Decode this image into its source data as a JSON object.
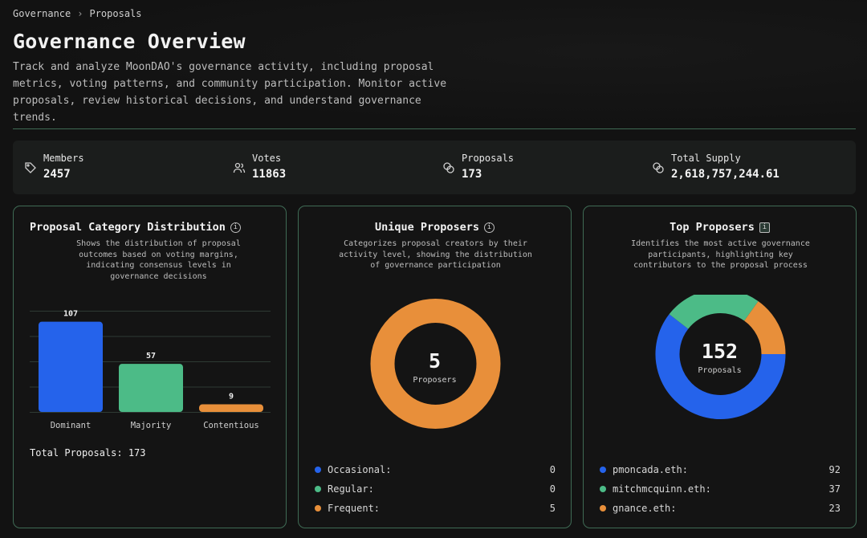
{
  "breadcrumb": {
    "root": "Governance",
    "current": "Proposals"
  },
  "header": {
    "title": "Governance Overview",
    "description": "Track and analyze MoonDAO's governance activity, including proposal metrics, voting patterns, and community participation. Monitor active proposals, review historical decisions, and understand governance trends."
  },
  "stats": [
    {
      "label": "Members",
      "value": "2457",
      "icon": "tag-icon"
    },
    {
      "label": "Votes",
      "value": "11863",
      "icon": "users-icon"
    },
    {
      "label": "Proposals",
      "value": "173",
      "icon": "coins-icon"
    },
    {
      "label": "Total Supply",
      "value": "2,618,757,244.61",
      "icon": "coins-icon"
    }
  ],
  "colors": {
    "blue": "#2563eb",
    "green": "#4cbb87",
    "orange": "#e88f3a",
    "accent_border": "#3f6b55"
  },
  "cards": {
    "category": {
      "title": "Proposal Category Distribution",
      "description": "Shows the distribution of proposal outcomes based on voting margins, indicating consensus levels in governance decisions",
      "total_label": "Total Proposals: 173"
    },
    "unique": {
      "title": "Unique Proposers",
      "description": "Categorizes proposal creators by their activity level, showing the distribution of governance participation",
      "center_value": "5",
      "center_label": "Proposers",
      "legend": [
        {
          "name": "Occasional:",
          "value": "0"
        },
        {
          "name": "Regular:",
          "value": "0"
        },
        {
          "name": "Frequent:",
          "value": "5"
        }
      ]
    },
    "top": {
      "title": "Top Proposers",
      "description": "Identifies the most active governance participants, highlighting key contributors to the proposal process",
      "center_value": "152",
      "center_label": "Proposals",
      "legend": [
        {
          "name": "pmoncada.eth:",
          "value": "92"
        },
        {
          "name": "mitchmcquinn.eth:",
          "value": "37"
        },
        {
          "name": "gnance.eth:",
          "value": "23"
        }
      ]
    }
  },
  "chart_data": [
    {
      "type": "bar",
      "categories": [
        "Dominant",
        "Majority",
        "Contentious"
      ],
      "values": [
        107,
        57,
        9
      ],
      "title": "Proposal Category Distribution",
      "ylim": [
        0,
        120
      ],
      "grid": true
    },
    {
      "type": "pie",
      "categories": [
        "Occasional",
        "Regular",
        "Frequent"
      ],
      "values": [
        0,
        0,
        5
      ],
      "title": "Unique Proposers"
    },
    {
      "type": "pie",
      "categories": [
        "pmoncada.eth",
        "mitchmcquinn.eth",
        "gnance.eth"
      ],
      "values": [
        92,
        37,
        23
      ],
      "title": "Top Proposers"
    }
  ]
}
